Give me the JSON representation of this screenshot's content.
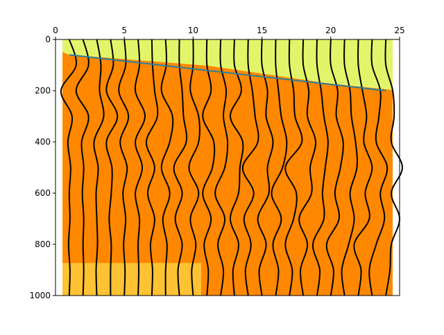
{
  "chart_data": {
    "type": "wiggle",
    "xlim": [
      0,
      25
    ],
    "xticks": [
      0,
      5,
      10,
      15,
      20,
      25
    ],
    "ylim": [
      1000,
      0
    ],
    "yticks": [
      0,
      200,
      400,
      600,
      800,
      1000
    ],
    "times": [
      0,
      100,
      200,
      300,
      400,
      500,
      600,
      700,
      800,
      900,
      1000
    ],
    "trace_color": "#000000",
    "traces": [
      {
        "x": 1,
        "values": [
          0,
          0.5,
          -0.6,
          0.2,
          -0.1,
          0.1,
          0,
          0.05,
          -0.05,
          0.05,
          0
        ]
      },
      {
        "x": 2,
        "values": [
          0,
          0.4,
          -0.5,
          0.4,
          -0.1,
          0.05,
          -0.05,
          0.05,
          0,
          0.05,
          0
        ]
      },
      {
        "x": 3,
        "values": [
          0,
          0.3,
          0.2,
          0.5,
          -0.2,
          0.1,
          -0.05,
          0,
          0.05,
          -0.05,
          0
        ]
      },
      {
        "x": 4,
        "values": [
          0,
          0.2,
          -0.3,
          0.5,
          -0.3,
          0.1,
          0.05,
          -0.1,
          0.05,
          0,
          0
        ]
      },
      {
        "x": 5,
        "values": [
          0,
          0.1,
          -0.4,
          0.3,
          -0.3,
          0.2,
          -0.1,
          0.1,
          -0.05,
          0.05,
          0
        ]
      },
      {
        "x": 6,
        "values": [
          0,
          0.1,
          -0.2,
          0.5,
          -0.2,
          0.3,
          -0.2,
          0.1,
          0,
          0.05,
          0
        ]
      },
      {
        "x": 7,
        "values": [
          0,
          0.05,
          0.2,
          0.4,
          -0.4,
          0.2,
          -0.3,
          0.2,
          -0.1,
          0.05,
          0
        ]
      },
      {
        "x": 8,
        "values": [
          0,
          0.05,
          -0.3,
          0.5,
          0.3,
          -0.3,
          0.3,
          -0.2,
          0.1,
          0,
          0
        ]
      },
      {
        "x": 9,
        "values": [
          0,
          0,
          0.2,
          0.3,
          0.5,
          -0.4,
          0.2,
          -0.3,
          0.2,
          -0.1,
          0
        ]
      },
      {
        "x": 10,
        "values": [
          0,
          0,
          -0.2,
          0.4,
          0.4,
          -0.3,
          0.4,
          -0.2,
          0.2,
          -0.1,
          0
        ]
      },
      {
        "x": 11,
        "values": [
          0,
          0,
          0.3,
          -0.3,
          0.5,
          0.4,
          -0.3,
          0.3,
          -0.2,
          0.1,
          0
        ]
      },
      {
        "x": 12,
        "values": [
          0,
          0,
          0.4,
          0.2,
          0.5,
          0.3,
          -0.4,
          0.3,
          -0.2,
          0.2,
          0
        ]
      },
      {
        "x": 13,
        "values": [
          0,
          0,
          0.5,
          -0.3,
          0.6,
          0.4,
          0.3,
          -0.3,
          0.3,
          -0.1,
          0
        ]
      },
      {
        "x": 14,
        "values": [
          0,
          0,
          0.3,
          0.5,
          0.7,
          -0.4,
          0.4,
          -0.3,
          0.2,
          -0.2,
          0
        ]
      },
      {
        "x": 15,
        "values": [
          0,
          0,
          0.4,
          0.3,
          0.8,
          0.4,
          0.5,
          -0.3,
          0.3,
          -0.2,
          0
        ]
      },
      {
        "x": 16,
        "values": [
          0,
          0,
          0.2,
          0.4,
          0.8,
          0.5,
          -0.3,
          0.4,
          -0.2,
          0.2,
          0
        ]
      },
      {
        "x": 17,
        "values": [
          0,
          0,
          0.3,
          0.4,
          0.9,
          -0.3,
          0.5,
          0.3,
          -0.3,
          0.2,
          0
        ]
      },
      {
        "x": 18,
        "values": [
          0,
          0,
          0.4,
          0.3,
          0.9,
          0.5,
          0.6,
          -0.3,
          0.3,
          -0.2,
          0
        ]
      },
      {
        "x": 19,
        "values": [
          0,
          0,
          0.3,
          0.5,
          0.8,
          0.6,
          0.4,
          0.5,
          -0.3,
          0.2,
          0
        ]
      },
      {
        "x": 20,
        "values": [
          0,
          0,
          0.5,
          0.4,
          0.9,
          0.7,
          0.3,
          0.6,
          -0.3,
          0.2,
          0
        ]
      },
      {
        "x": 21,
        "values": [
          0,
          0,
          0.4,
          0.5,
          0.8,
          0.9,
          0.4,
          0.7,
          0.3,
          -0.2,
          0
        ]
      },
      {
        "x": 22,
        "values": [
          0,
          0,
          0.3,
          0.6,
          0.4,
          1.0,
          0.5,
          0.8,
          -0.3,
          0.2,
          0
        ]
      },
      {
        "x": 23,
        "values": [
          0,
          0,
          0.6,
          0.5,
          0.3,
          1.1,
          0.6,
          0.9,
          0.3,
          -0.2,
          0
        ]
      },
      {
        "x": 24,
        "values": [
          0,
          0,
          0.5,
          0.6,
          0.4,
          1.2,
          0.4,
          1.0,
          0.4,
          0.3,
          0
        ]
      }
    ],
    "first_break": {
      "color": "#2a7f9e",
      "x": [
        1,
        24
      ],
      "values": [
        60,
        200
      ]
    }
  }
}
